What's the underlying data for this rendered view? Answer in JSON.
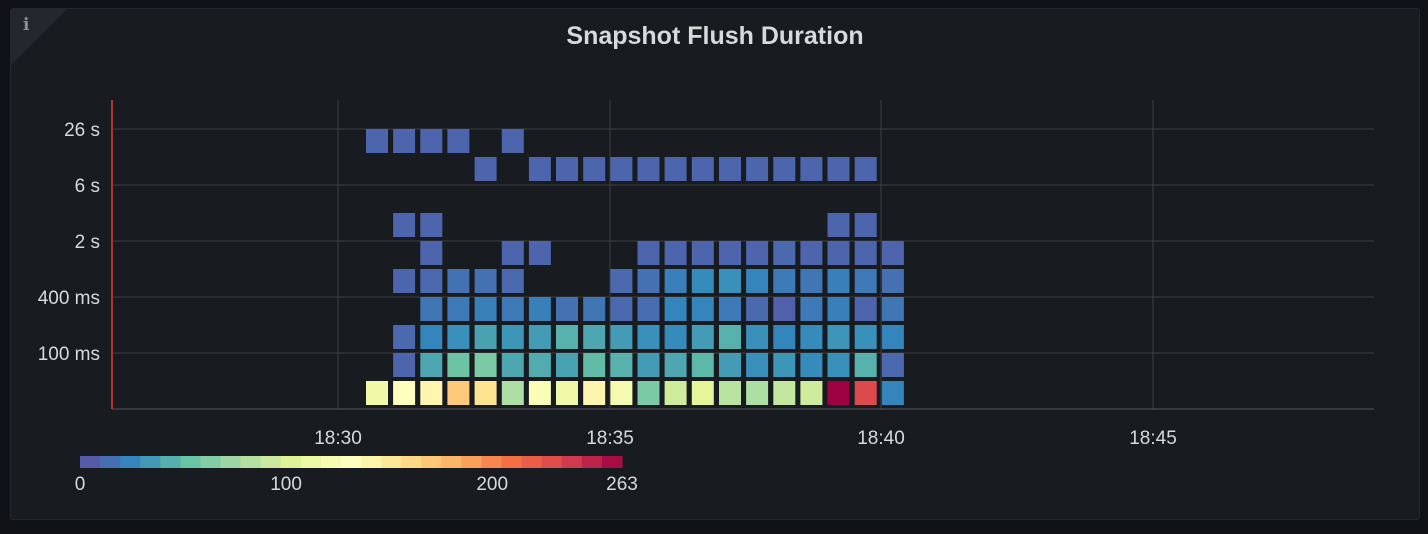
{
  "panel": {
    "title": "Snapshot Flush Duration",
    "info_icon": "i"
  },
  "colors": {
    "background": "#181b1f",
    "grid": "#3a3c41",
    "axis_left": "#b72f35",
    "text": "#d8d9da",
    "scheme": "Spectral"
  },
  "chart_data": {
    "type": "heatmap",
    "title": "Snapshot Flush Duration",
    "x_ticks": [
      "18:30",
      "18:35",
      "18:40",
      "18:45"
    ],
    "y_ticks": [
      "26 s",
      "6 s",
      "2 s",
      "400 ms",
      "100 ms"
    ],
    "x_buckets": [
      "18:30:30",
      "18:31:00",
      "18:31:30",
      "18:32:00",
      "18:32:30",
      "18:33:00",
      "18:33:30",
      "18:34:00",
      "18:34:30",
      "18:35:00",
      "18:35:30",
      "18:36:00",
      "18:36:30",
      "18:37:00",
      "18:37:30",
      "18:38:00",
      "18:38:30",
      "18:39:00",
      "18:39:30",
      "18:40:00"
    ],
    "y_buckets": [
      "< 100 ms",
      "100 ms",
      "200 ms",
      "400 ms",
      "1 s",
      "2 s",
      "3 s",
      "6 s",
      "26 s"
    ],
    "cells": [
      [
        0,
        0,
        115
      ],
      [
        1,
        0,
        130
      ],
      [
        2,
        0,
        140
      ],
      [
        3,
        0,
        170
      ],
      [
        4,
        0,
        155
      ],
      [
        5,
        0,
        80
      ],
      [
        6,
        0,
        125
      ],
      [
        7,
        0,
        115
      ],
      [
        8,
        0,
        140
      ],
      [
        9,
        0,
        120
      ],
      [
        10,
        0,
        60
      ],
      [
        11,
        0,
        95
      ],
      [
        12,
        0,
        105
      ],
      [
        13,
        0,
        85
      ],
      [
        14,
        0,
        80
      ],
      [
        15,
        0,
        90
      ],
      [
        16,
        0,
        95
      ],
      [
        17,
        0,
        263
      ],
      [
        18,
        0,
        230
      ],
      [
        19,
        0,
        25
      ],
      [
        1,
        1,
        10
      ],
      [
        2,
        1,
        40
      ],
      [
        3,
        1,
        55
      ],
      [
        4,
        1,
        60
      ],
      [
        5,
        1,
        40
      ],
      [
        6,
        1,
        42
      ],
      [
        7,
        1,
        38
      ],
      [
        8,
        1,
        50
      ],
      [
        9,
        1,
        45
      ],
      [
        10,
        1,
        35
      ],
      [
        11,
        1,
        40
      ],
      [
        12,
        1,
        48
      ],
      [
        13,
        1,
        35
      ],
      [
        14,
        1,
        30
      ],
      [
        15,
        1,
        32
      ],
      [
        16,
        1,
        28
      ],
      [
        17,
        1,
        30
      ],
      [
        18,
        1,
        45
      ],
      [
        19,
        1,
        12
      ],
      [
        1,
        2,
        12
      ],
      [
        2,
        2,
        25
      ],
      [
        3,
        2,
        30
      ],
      [
        4,
        2,
        38
      ],
      [
        5,
        2,
        32
      ],
      [
        6,
        2,
        35
      ],
      [
        7,
        2,
        45
      ],
      [
        8,
        2,
        40
      ],
      [
        9,
        2,
        35
      ],
      [
        10,
        2,
        30
      ],
      [
        11,
        2,
        28
      ],
      [
        12,
        2,
        35
      ],
      [
        13,
        2,
        45
      ],
      [
        14,
        2,
        30
      ],
      [
        15,
        2,
        25
      ],
      [
        16,
        2,
        28
      ],
      [
        17,
        2,
        32
      ],
      [
        18,
        2,
        30
      ],
      [
        19,
        2,
        25
      ],
      [
        2,
        3,
        18
      ],
      [
        3,
        3,
        20
      ],
      [
        4,
        3,
        22
      ],
      [
        5,
        3,
        20
      ],
      [
        6,
        3,
        22
      ],
      [
        7,
        3,
        15
      ],
      [
        8,
        3,
        18
      ],
      [
        9,
        3,
        12
      ],
      [
        10,
        3,
        14
      ],
      [
        11,
        3,
        25
      ],
      [
        12,
        3,
        25
      ],
      [
        13,
        3,
        20
      ],
      [
        14,
        3,
        12
      ],
      [
        15,
        3,
        8
      ],
      [
        16,
        3,
        20
      ],
      [
        17,
        3,
        22
      ],
      [
        18,
        3,
        10
      ],
      [
        19,
        3,
        18
      ],
      [
        1,
        4,
        10
      ],
      [
        2,
        4,
        12
      ],
      [
        3,
        4,
        16
      ],
      [
        4,
        4,
        15
      ],
      [
        5,
        4,
        12
      ],
      [
        9,
        4,
        12
      ],
      [
        10,
        4,
        15
      ],
      [
        11,
        4,
        22
      ],
      [
        12,
        4,
        28
      ],
      [
        13,
        4,
        30
      ],
      [
        14,
        4,
        25
      ],
      [
        15,
        4,
        20
      ],
      [
        16,
        4,
        18
      ],
      [
        17,
        4,
        22
      ],
      [
        18,
        4,
        20
      ],
      [
        19,
        4,
        15
      ],
      [
        2,
        5,
        10
      ],
      [
        5,
        5,
        10
      ],
      [
        6,
        5,
        10
      ],
      [
        10,
        5,
        10
      ],
      [
        11,
        5,
        10
      ],
      [
        12,
        5,
        10
      ],
      [
        13,
        5,
        10
      ],
      [
        14,
        5,
        10
      ],
      [
        15,
        5,
        12
      ],
      [
        16,
        5,
        10
      ],
      [
        17,
        5,
        10
      ],
      [
        18,
        5,
        10
      ],
      [
        19,
        5,
        10
      ],
      [
        1,
        6,
        10
      ],
      [
        2,
        6,
        10
      ],
      [
        17,
        6,
        10
      ],
      [
        18,
        6,
        10
      ],
      [
        4,
        7,
        10
      ],
      [
        6,
        7,
        10
      ],
      [
        7,
        7,
        10
      ],
      [
        8,
        7,
        10
      ],
      [
        9,
        7,
        10
      ],
      [
        10,
        7,
        10
      ],
      [
        11,
        7,
        10
      ],
      [
        12,
        7,
        10
      ],
      [
        13,
        7,
        10
      ],
      [
        14,
        7,
        10
      ],
      [
        15,
        7,
        10
      ],
      [
        16,
        7,
        10
      ],
      [
        17,
        7,
        10
      ],
      [
        18,
        7,
        10
      ],
      [
        0,
        8,
        10
      ],
      [
        1,
        8,
        10
      ],
      [
        2,
        8,
        10
      ],
      [
        3,
        8,
        10
      ],
      [
        5,
        8,
        10
      ]
    ],
    "legend": {
      "min": 0,
      "max": 263,
      "ticks": [
        "0",
        "100",
        "200",
        "263"
      ],
      "scheme": "Spectral"
    }
  }
}
